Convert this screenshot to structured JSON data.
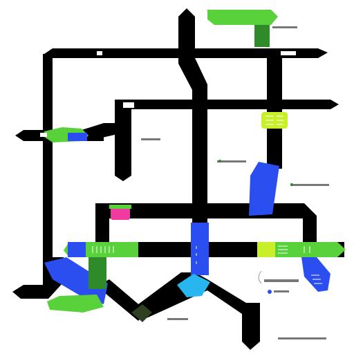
{
  "colors": {
    "road": "#000000",
    "green": "#58d13a",
    "green_dark": "#2f8a2a",
    "lime": "#c8f02a",
    "blue": "#2a4ef0",
    "cyan": "#27b6f0",
    "pink": "#f03aa0",
    "olive": "#2f3f22",
    "background": "#ffffff"
  },
  "icons": [
    "node-glyph-icon",
    "marker-dot-icon"
  ],
  "labels": [],
  "marks": [
    "glyph",
    "glyph",
    "glyph",
    "glyph",
    "glyph"
  ]
}
